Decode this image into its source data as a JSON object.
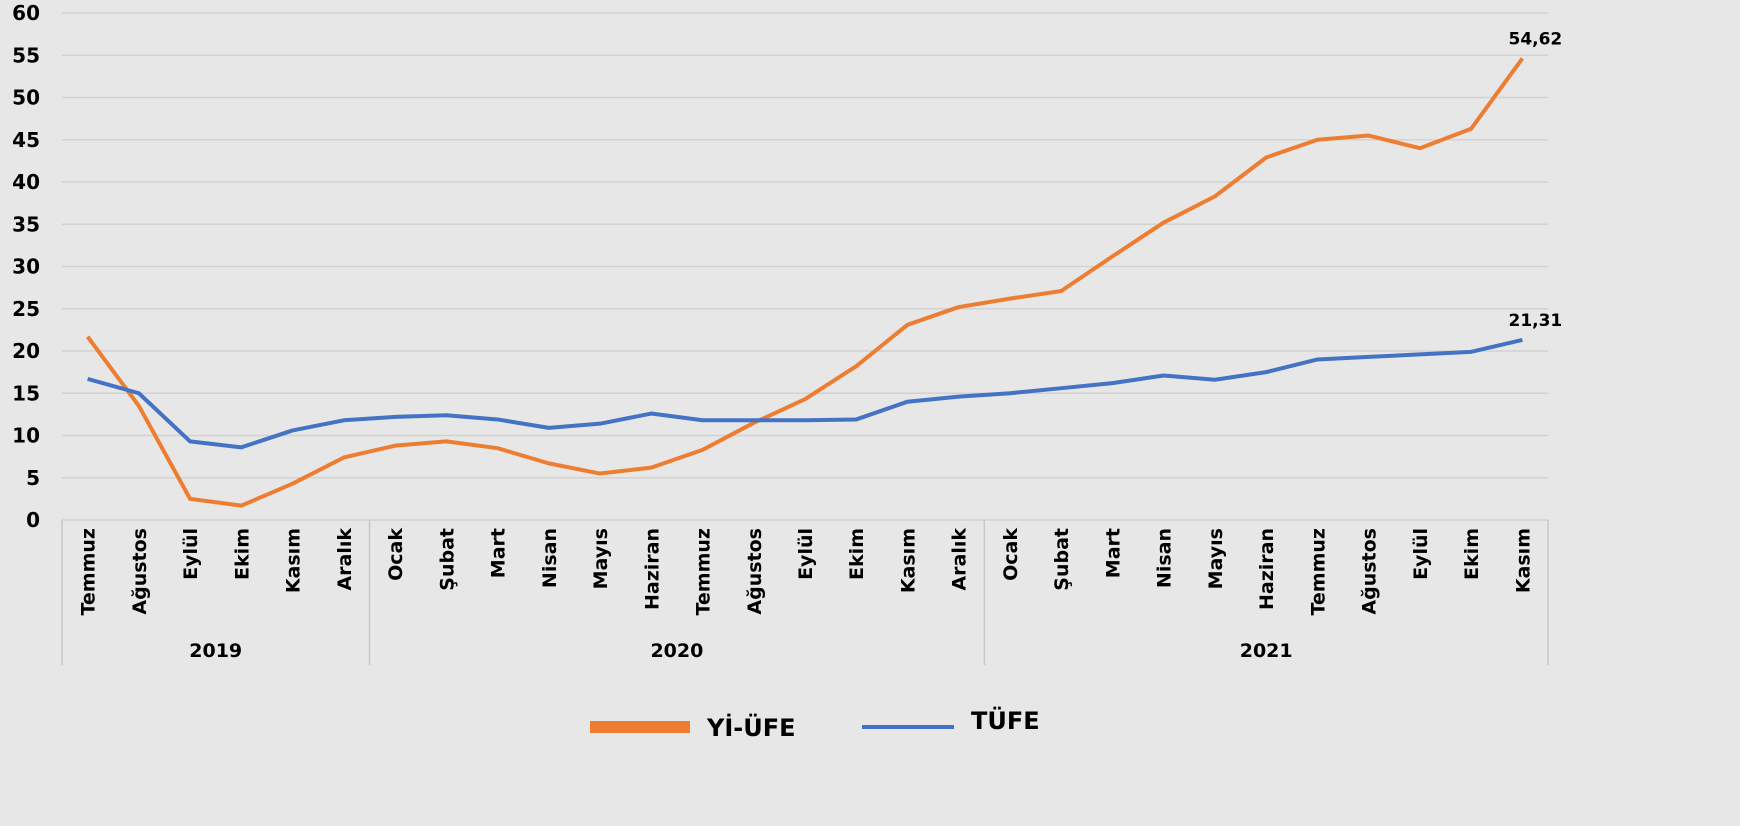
{
  "chart_data": {
    "type": "line",
    "groups": [
      {
        "label": "2019",
        "categories": [
          "Temmuz",
          "Ağustos",
          "Eylül",
          "Ekim",
          "Kasım",
          "Aralık"
        ]
      },
      {
        "label": "2020",
        "categories": [
          "Ocak",
          "Şubat",
          "Mart",
          "Nisan",
          "Mayıs",
          "Haziran",
          "Temmuz",
          "Ağustos",
          "Eylül",
          "Ekim",
          "Kasım",
          "Aralık"
        ]
      },
      {
        "label": "2021",
        "categories": [
          "Ocak",
          "Şubat",
          "Mart",
          "Nisan",
          "Mayıs",
          "Haziran",
          "Temmuz",
          "Ağustos",
          "Eylül",
          "Ekim",
          "Kasım"
        ]
      }
    ],
    "series": [
      {
        "name": "Yİ-ÜFE",
        "color": "#ed7d31",
        "values": [
          21.7,
          13.5,
          2.5,
          1.7,
          4.3,
          7.4,
          8.8,
          9.3,
          8.5,
          6.7,
          5.5,
          6.2,
          8.3,
          11.5,
          14.3,
          18.2,
          23.1,
          25.2,
          26.2,
          27.1,
          31.2,
          35.2,
          38.3,
          42.9,
          45.0,
          45.5,
          44.0,
          46.3,
          54.62
        ],
        "value_labels": [
          null,
          null,
          null,
          null,
          null,
          null,
          null,
          null,
          null,
          null,
          null,
          null,
          null,
          null,
          null,
          null,
          null,
          null,
          null,
          null,
          null,
          null,
          null,
          null,
          null,
          null,
          null,
          null,
          "54,62"
        ]
      },
      {
        "name": "TÜFE",
        "color": "#4472c4",
        "values": [
          16.7,
          15.0,
          9.3,
          8.6,
          10.6,
          11.8,
          12.2,
          12.4,
          11.9,
          10.9,
          11.4,
          12.6,
          11.8,
          11.8,
          11.8,
          11.9,
          14.0,
          14.6,
          15.0,
          15.6,
          16.2,
          17.1,
          16.6,
          17.5,
          19.0,
          19.3,
          19.6,
          19.9,
          21.31
        ],
        "value_labels": [
          null,
          null,
          null,
          null,
          null,
          null,
          null,
          null,
          null,
          null,
          null,
          null,
          null,
          null,
          null,
          null,
          null,
          null,
          null,
          null,
          null,
          null,
          null,
          null,
          null,
          null,
          null,
          null,
          "21,31"
        ]
      }
    ],
    "ylim": [
      0,
      60
    ],
    "yticks": [
      0,
      5,
      10,
      15,
      20,
      25,
      30,
      35,
      40,
      45,
      50,
      55,
      60
    ],
    "grid": true
  }
}
